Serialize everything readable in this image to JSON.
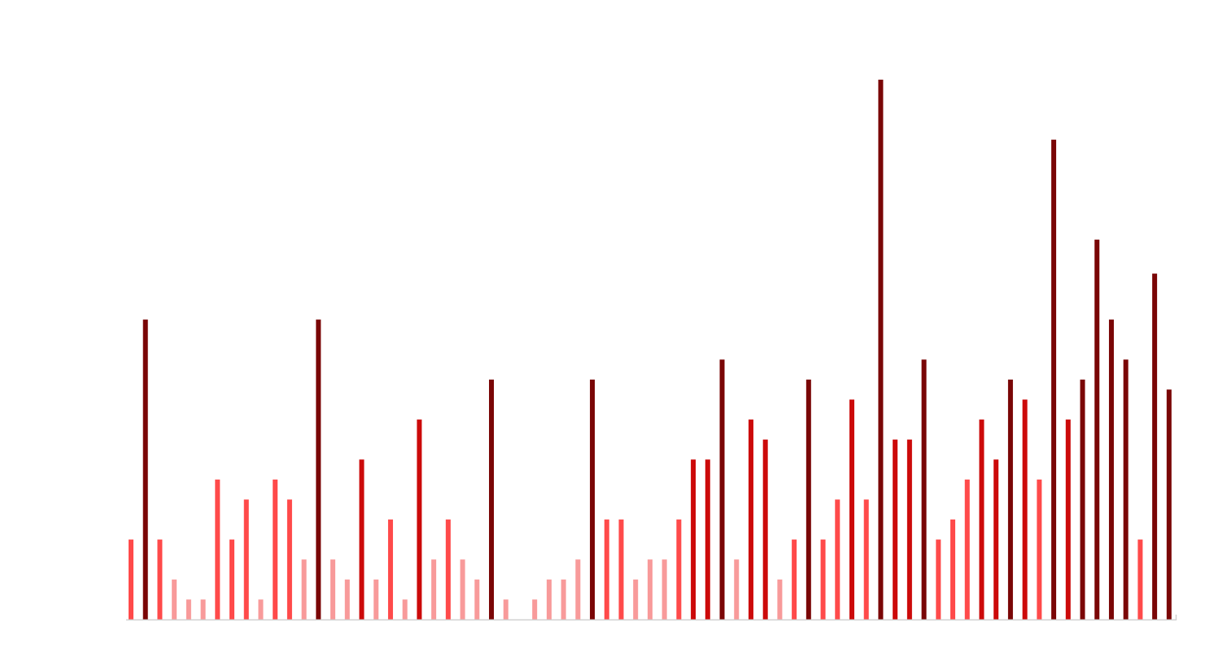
{
  "chart_data": {
    "type": "bar",
    "title": "",
    "xlabel": "",
    "ylabel": "",
    "grid": false,
    "legend": "none",
    "ylim": [
      0,
      27
    ],
    "values": [
      4,
      15,
      4,
      2,
      1,
      1,
      7,
      4,
      6,
      1,
      7,
      6,
      3,
      15,
      3,
      2,
      8,
      2,
      5,
      1,
      10,
      3,
      5,
      3,
      2,
      12,
      1,
      0,
      1,
      2,
      2,
      3,
      12,
      5,
      5,
      2,
      3,
      3,
      5,
      8,
      8,
      13,
      3,
      10,
      9,
      2,
      4,
      12,
      4,
      6,
      11,
      6,
      27,
      9,
      9,
      13,
      4,
      5,
      7,
      10,
      8,
      12,
      11,
      7,
      24,
      10,
      12,
      19,
      15,
      13,
      4,
      17.3,
      11.5
    ],
    "colors": {
      "light": "#f89a9a",
      "medium": "#ff4a4a",
      "strong": "#cc0a0a",
      "dark": "#7a0606",
      "axis": "#d0d0d0"
    }
  }
}
